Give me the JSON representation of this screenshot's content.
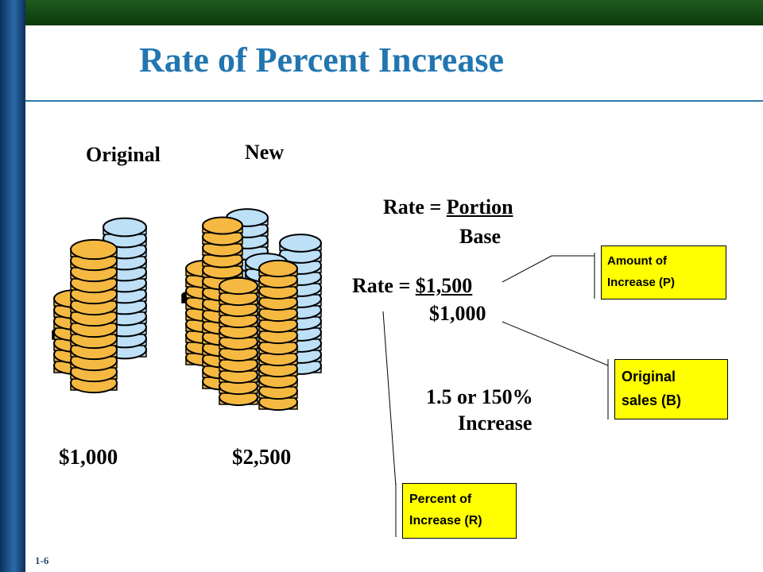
{
  "slide": {
    "title": "Rate of Percent Increase",
    "slide_number": "1-6"
  },
  "labels": {
    "original": "Original",
    "new": "New",
    "original_value": "$1,000",
    "new_value": "$2,500"
  },
  "formula": {
    "rate_prefix": "Rate = ",
    "numerator": "Portion",
    "denominator": "Base",
    "numeric_prefix": "Rate = ",
    "numeric_numerator": "$1,500",
    "numeric_denominator": "$1,000"
  },
  "result": {
    "line1": "1.5 or 150%",
    "line2": "Increase"
  },
  "callouts": {
    "amount": {
      "line1": "Amount of",
      "line2": "Increase (P)"
    },
    "original": {
      "line1": "Original",
      "line2": "sales (B)"
    },
    "percent": {
      "line1": "Percent of",
      "line2": "Increase (R)"
    }
  },
  "colors": {
    "title": "#2276b0",
    "callout_fill": "#ffff00",
    "coin_gold": "#f5b942",
    "coin_blue": "#bde0f7"
  }
}
